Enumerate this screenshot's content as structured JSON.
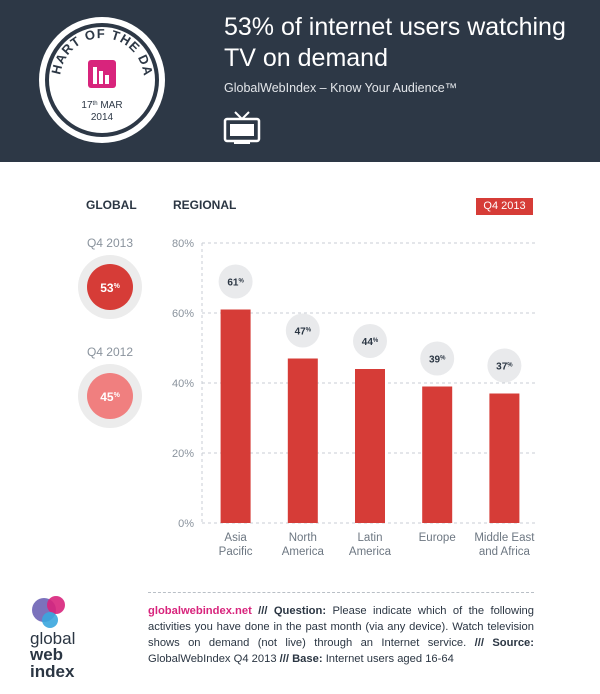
{
  "header": {
    "badge": {
      "line1": "CHART OF THE DAY",
      "day": "17",
      "day_suffix": "th",
      "month": "MAR",
      "year": "2014"
    },
    "title": "53% of internet users watching TV on demand",
    "subtitle": "GlobalWebIndex – Know Your Audience™",
    "icon": "tv-icon"
  },
  "global": {
    "label": "GLOBAL",
    "items": [
      {
        "period": "Q4 2013",
        "value": "53",
        "unit": "%",
        "color": "#d63c37"
      },
      {
        "period": "Q4 2012",
        "value": "45",
        "unit": "%",
        "color": "#f07f7f"
      }
    ]
  },
  "regional": {
    "label": "REGIONAL",
    "tag": "Q4 2013"
  },
  "colors": {
    "bar": "#d63c37",
    "header_bg": "#2d3846",
    "accent_pink": "#d8247c"
  },
  "chart_data": {
    "type": "bar",
    "categories": [
      [
        "Asia",
        "Pacific"
      ],
      [
        "North",
        "America"
      ],
      [
        "Latin",
        "America"
      ],
      [
        "Europe"
      ],
      [
        "Middle East",
        "and Africa"
      ]
    ],
    "values": [
      61,
      47,
      44,
      39,
      37
    ],
    "value_labels": [
      "61%",
      "47%",
      "44%",
      "39%",
      "37%"
    ],
    "y_ticks": [
      0,
      20,
      40,
      60,
      80
    ],
    "y_tick_labels": [
      "0%",
      "20%",
      "40%",
      "60%",
      "80%"
    ],
    "ylim": [
      0,
      80
    ],
    "grid": "dashed"
  },
  "footer": {
    "site": "globalwebindex.net",
    "q_label": "Question:",
    "question": "Please indicate which of the following activities you have done in the past month (via any device). Watch television shows on demand (not live) through an Internet service.",
    "source_label": "Source:",
    "source": "GlobalWebIndex Q4 2013",
    "base_label": "Base:",
    "base": "Internet users aged 16-64",
    "logo": {
      "l1": "global",
      "l2": "web",
      "l3": "index"
    }
  }
}
